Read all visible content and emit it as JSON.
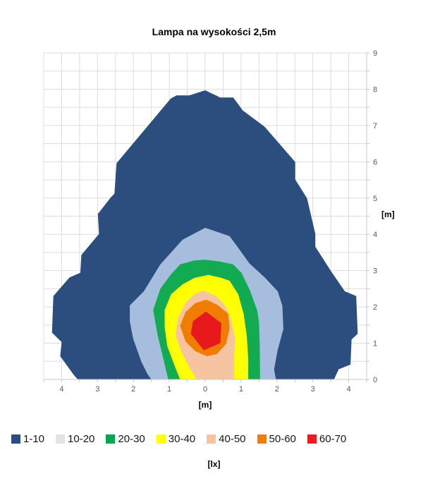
{
  "title": "Lampa na wysokości 2,5m",
  "axes": {
    "x": {
      "unit_label": "[m]",
      "min": -4.5,
      "max": 4.5,
      "tick_step": 0.5,
      "tick_values": [
        -4,
        -3,
        -2,
        -1,
        0,
        1,
        2,
        3,
        4
      ],
      "tick_labels": [
        "4",
        "3",
        "2",
        "1",
        "0",
        "1",
        "2",
        "3",
        "4"
      ]
    },
    "y": {
      "unit_label": "[m]",
      "min": 0,
      "max": 9,
      "tick_step": 0.5,
      "tick_values": [
        0,
        1,
        2,
        3,
        4,
        5,
        6,
        7,
        8,
        9
      ],
      "tick_labels": [
        "0",
        "1",
        "2",
        "3",
        "4",
        "5",
        "6",
        "7",
        "8",
        "9"
      ]
    }
  },
  "legend": {
    "position": "bottom",
    "unit_label": "[lx]",
    "items": [
      {
        "label": "1-10",
        "color": "#2B4E7E"
      },
      {
        "label": "10-20",
        "color": "#E3E3E3"
      },
      {
        "label": "20-30",
        "color": "#00A651"
      },
      {
        "label": "30-40",
        "color": "#FFFF00"
      },
      {
        "label": "40-50",
        "color": "#F6C4A0"
      },
      {
        "label": "50-60",
        "color": "#F07D00"
      },
      {
        "label": "60-70",
        "color": "#ED1C24"
      }
    ]
  },
  "chart_data": {
    "type": "contour",
    "title": "Lampa na wysokości 2,5m",
    "value_unit": "lx",
    "xlabel": "[m]",
    "ylabel": "[m]",
    "x_range": [
      -4.5,
      4.5
    ],
    "y_range": [
      0,
      9
    ],
    "grid_step": 0.5,
    "grid_on": true,
    "grid_color": "#DDDDDD",
    "axis_color": "#C8C8C8",
    "tick_label_color": "#595959",
    "legend_position": "bottom",
    "bands": [
      {
        "range_lx": "1-10",
        "fill": "#2B4E7E",
        "points": [
          [
            0.0,
            7.97
          ],
          [
            0.42,
            7.77
          ],
          [
            0.78,
            7.77
          ],
          [
            0.97,
            7.52
          ],
          [
            1.04,
            7.42
          ],
          [
            1.66,
            6.96
          ],
          [
            2.51,
            5.99
          ],
          [
            2.51,
            5.51
          ],
          [
            2.84,
            4.99
          ],
          [
            3.07,
            4.01
          ],
          [
            3.07,
            3.66
          ],
          [
            3.49,
            3.01
          ],
          [
            3.89,
            2.43
          ],
          [
            4.21,
            2.3
          ],
          [
            4.25,
            1.26
          ],
          [
            4.08,
            1.1
          ],
          [
            4.05,
            0.41
          ],
          [
            3.72,
            0.28
          ],
          [
            3.59,
            0.0
          ],
          [
            -3.55,
            0.0
          ],
          [
            -3.66,
            0.12
          ],
          [
            -4.04,
            0.64
          ],
          [
            -4.0,
            1.03
          ],
          [
            -4.27,
            1.29
          ],
          [
            -4.23,
            2.3
          ],
          [
            -3.78,
            2.81
          ],
          [
            -3.48,
            2.94
          ],
          [
            -3.45,
            3.43
          ],
          [
            -2.96,
            4.01
          ],
          [
            -2.99,
            4.56
          ],
          [
            -2.63,
            5.02
          ],
          [
            -2.53,
            5.12
          ],
          [
            -2.47,
            5.96
          ],
          [
            -0.96,
            7.74
          ],
          [
            -0.8,
            7.83
          ],
          [
            -0.44,
            7.83
          ]
        ]
      },
      {
        "range_lx": "10-20",
        "fill": "#A6BDDE",
        "points": [
          [
            0.0,
            4.18
          ],
          [
            0.68,
            3.95
          ],
          [
            0.97,
            3.56
          ],
          [
            1.23,
            3.2
          ],
          [
            1.66,
            2.81
          ],
          [
            2.02,
            2.43
          ],
          [
            2.15,
            2.04
          ],
          [
            2.18,
            1.39
          ],
          [
            2.02,
            0.81
          ],
          [
            1.92,
            0.28
          ],
          [
            1.97,
            0.0
          ],
          [
            -1.5,
            0.0
          ],
          [
            -1.61,
            0.15
          ],
          [
            -1.78,
            0.49
          ],
          [
            -2.01,
            1.13
          ],
          [
            -2.1,
            1.6
          ],
          [
            -2.1,
            2.04
          ],
          [
            -1.71,
            2.43
          ],
          [
            -1.25,
            3.17
          ],
          [
            -0.63,
            3.85
          ]
        ]
      },
      {
        "range_lx": "20-30",
        "fill": "#12AB51",
        "points": [
          [
            0.0,
            3.3
          ],
          [
            0.4,
            3.25
          ],
          [
            0.78,
            3.17
          ],
          [
            1.01,
            2.94
          ],
          [
            1.25,
            2.45
          ],
          [
            1.45,
            1.9
          ],
          [
            1.5,
            1.58
          ],
          [
            1.52,
            0.9
          ],
          [
            1.53,
            0.0
          ],
          [
            -1.03,
            0.0
          ],
          [
            -1.15,
            0.5
          ],
          [
            -1.32,
            1.2
          ],
          [
            -1.45,
            1.91
          ],
          [
            -1.25,
            2.5
          ],
          [
            -0.95,
            2.9
          ],
          [
            -0.7,
            3.17
          ],
          [
            -0.3,
            3.28
          ]
        ]
      },
      {
        "range_lx": "30-40",
        "fill": "#FFFF00",
        "points": [
          [
            0.09,
            2.88
          ],
          [
            0.45,
            2.8
          ],
          [
            0.68,
            2.72
          ],
          [
            0.92,
            2.35
          ],
          [
            1.07,
            1.81
          ],
          [
            1.16,
            1.2
          ],
          [
            1.2,
            0.55
          ],
          [
            1.2,
            0.0
          ],
          [
            -0.7,
            0.0
          ],
          [
            -0.88,
            0.45
          ],
          [
            -1.06,
            0.93
          ],
          [
            -1.13,
            1.45
          ],
          [
            -1.13,
            1.91
          ],
          [
            -0.95,
            2.35
          ],
          [
            -0.63,
            2.62
          ],
          [
            -0.3,
            2.8
          ]
        ]
      },
      {
        "range_lx": "40-50",
        "fill": "#F6C4A0",
        "points": [
          [
            -0.05,
            2.45
          ],
          [
            0.3,
            2.3
          ],
          [
            0.55,
            2.05
          ],
          [
            0.71,
            1.68
          ],
          [
            0.83,
            1.15
          ],
          [
            0.81,
            0.6
          ],
          [
            0.81,
            0.0
          ],
          [
            -0.24,
            0.0
          ],
          [
            -0.45,
            0.35
          ],
          [
            -0.68,
            0.8
          ],
          [
            -0.83,
            1.23
          ],
          [
            -0.75,
            1.7
          ],
          [
            -0.55,
            2.1
          ],
          [
            -0.3,
            2.35
          ]
        ]
      },
      {
        "range_lx": "50-60",
        "fill": "#F07D00",
        "points": [
          [
            0.03,
            2.2
          ],
          [
            0.35,
            2.05
          ],
          [
            0.64,
            1.81
          ],
          [
            0.68,
            1.4
          ],
          [
            0.58,
            0.98
          ],
          [
            0.33,
            0.7
          ],
          [
            0.05,
            0.64
          ],
          [
            -0.28,
            0.78
          ],
          [
            -0.55,
            1.05
          ],
          [
            -0.7,
            1.48
          ],
          [
            -0.55,
            1.85
          ],
          [
            -0.28,
            2.1
          ]
        ]
      },
      {
        "range_lx": "60-70",
        "fill": "#E8191D",
        "points": [
          [
            0.02,
            1.87
          ],
          [
            0.45,
            1.55
          ],
          [
            0.42,
            1.0
          ],
          [
            -0.04,
            0.8
          ],
          [
            -0.4,
            1.26
          ],
          [
            -0.34,
            1.61
          ]
        ]
      }
    ]
  }
}
